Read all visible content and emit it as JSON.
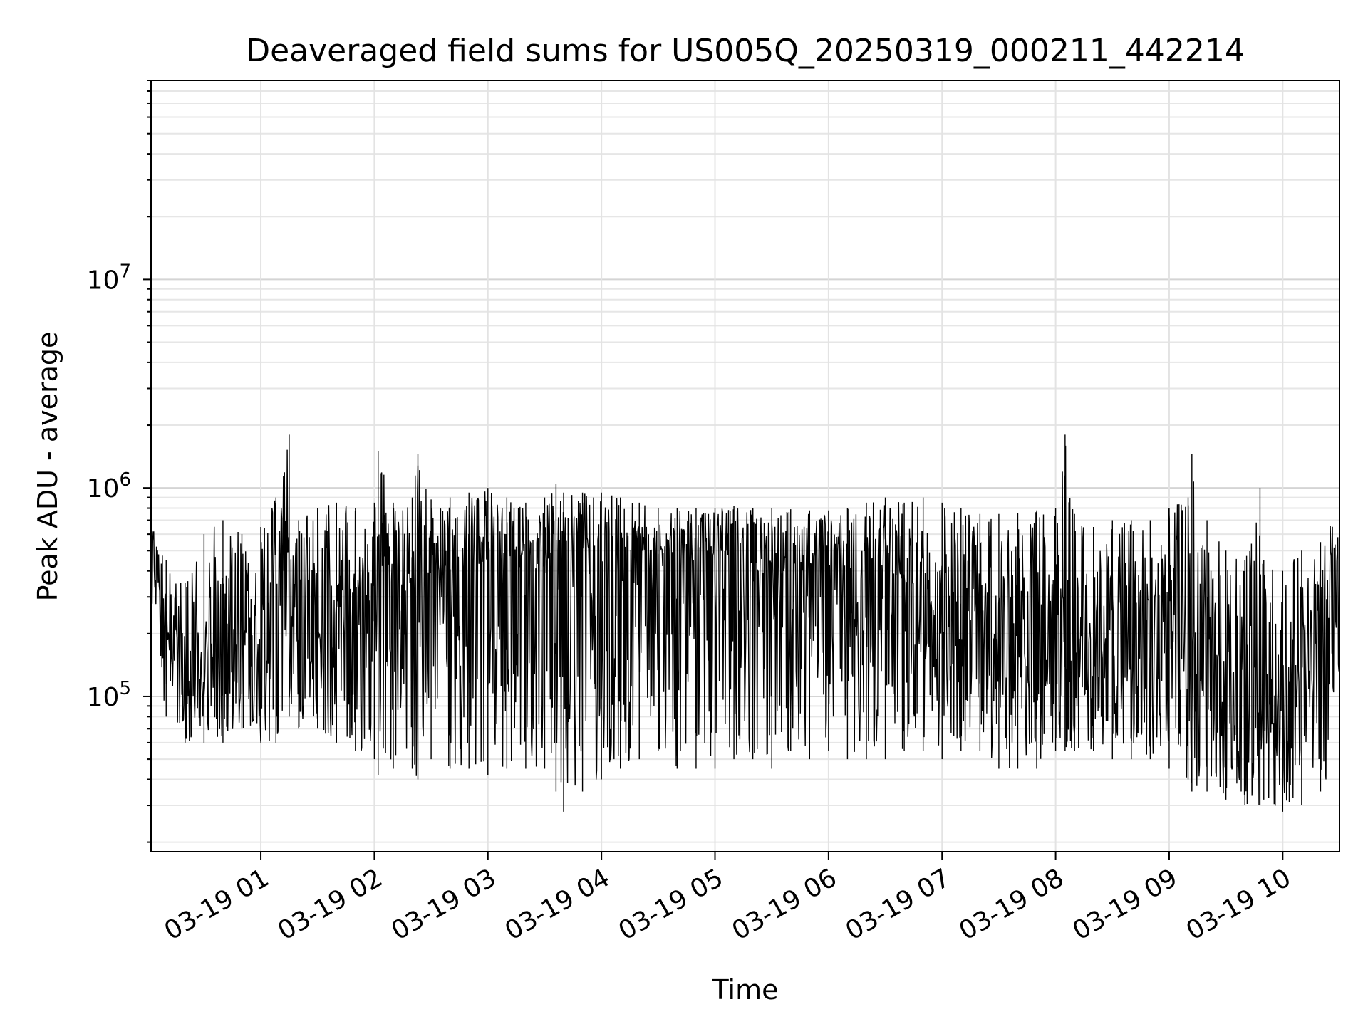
{
  "chart_data": {
    "type": "line",
    "title": "Deaveraged field sums for US005Q_20250319_000211_442214",
    "xlabel": "Time",
    "ylabel": "Peak ADU - average",
    "x_scale": "time",
    "y_scale": "log",
    "xlim": [
      "2025-03-19 00:02",
      "2025-03-19 10:30"
    ],
    "ylim": [
      18000,
      90000000
    ],
    "grid": true,
    "legend": "none",
    "x_tick_labels": [
      "03-19 01",
      "03-19 02",
      "03-19 03",
      "03-19 04",
      "03-19 05",
      "03-19 06",
      "03-19 07",
      "03-19 08",
      "03-19 09",
      "03-19 10"
    ],
    "y_tick_labels": [
      {
        "value": 100000,
        "mantissa": "10",
        "exponent": "5"
      },
      {
        "value": 1000000,
        "mantissa": "10",
        "exponent": "6"
      },
      {
        "value": 10000000,
        "mantissa": "10",
        "exponent": "7"
      }
    ],
    "line_color": "#000000",
    "series": [
      {
        "x": [
          "00:02",
          "00:10",
          "00:20",
          "00:30",
          "00:40",
          "00:50",
          "01:00",
          "01:08",
          "01:15",
          "01:20",
          "01:30",
          "01:40",
          "01:50",
          "02:00",
          "02:02",
          "02:10",
          "02:20",
          "02:23",
          "02:30",
          "02:40",
          "02:50",
          "03:00",
          "03:10",
          "03:20",
          "03:30",
          "03:36",
          "03:40",
          "03:50",
          "04:00",
          "04:10",
          "04:20",
          "04:30",
          "04:40",
          "04:50",
          "05:00",
          "05:10",
          "05:20",
          "05:30",
          "05:40",
          "05:50",
          "06:00",
          "06:10",
          "06:20",
          "06:30",
          "06:40",
          "06:50",
          "07:00",
          "07:10",
          "07:20",
          "07:30",
          "07:40",
          "07:50",
          "08:00",
          "08:05",
          "08:10",
          "08:20",
          "08:30",
          "08:40",
          "08:50",
          "09:00",
          "09:10",
          "09:12",
          "09:20",
          "09:30",
          "09:40",
          "09:48",
          "09:50",
          "10:00",
          "10:10",
          "10:20",
          "10:30"
        ],
        "y_high": [
          800000,
          450000,
          350000,
          600000,
          700000,
          600000,
          650000,
          900000,
          1800000,
          700000,
          800000,
          850000,
          800000,
          850000,
          1500000,
          850000,
          900000,
          1450000,
          880000,
          900000,
          950000,
          1000000,
          900000,
          850000,
          900000,
          1050000,
          950000,
          950000,
          950000,
          900000,
          850000,
          800000,
          800000,
          800000,
          800000,
          820000,
          800000,
          800000,
          790000,
          780000,
          780000,
          800000,
          850000,
          900000,
          850000,
          900000,
          850000,
          800000,
          750000,
          750000,
          760000,
          780000,
          800000,
          1800000,
          750000,
          650000,
          700000,
          700000,
          700000,
          800000,
          900000,
          1450000,
          700000,
          500000,
          450000,
          1000000,
          450000,
          400000,
          500000,
          550000,
          800000
        ],
        "y_low": [
          250000,
          80000,
          60000,
          60000,
          60000,
          70000,
          60000,
          60000,
          80000,
          70000,
          70000,
          60000,
          55000,
          50000,
          42000,
          45000,
          45000,
          40000,
          50000,
          45000,
          45000,
          42000,
          45000,
          45000,
          45000,
          35000,
          28000,
          35000,
          40000,
          45000,
          50000,
          55000,
          45000,
          45000,
          45000,
          50000,
          50000,
          45000,
          55000,
          50000,
          55000,
          50000,
          50000,
          50000,
          55000,
          55000,
          50000,
          55000,
          55000,
          45000,
          45000,
          45000,
          55000,
          55000,
          55000,
          55000,
          50000,
          50000,
          50000,
          45000,
          40000,
          35000,
          35000,
          32000,
          30000,
          30000,
          32000,
          28000,
          30000,
          35000,
          50000
        ],
        "y_typical": [
          550000,
          180000,
          150000,
          140000,
          140000,
          160000,
          150000,
          180000,
          250000,
          220000,
          230000,
          260000,
          280000,
          300000,
          320000,
          330000,
          350000,
          360000,
          380000,
          400000,
          420000,
          440000,
          460000,
          470000,
          480000,
          490000,
          500000,
          510000,
          520000,
          510000,
          500000,
          490000,
          470000,
          460000,
          450000,
          440000,
          430000,
          430000,
          420000,
          410000,
          400000,
          390000,
          380000,
          370000,
          350000,
          330000,
          320000,
          300000,
          280000,
          270000,
          260000,
          250000,
          240000,
          240000,
          230000,
          220000,
          210000,
          190000,
          180000,
          160000,
          140000,
          130000,
          110000,
          100000,
          95000,
          95000,
          95000,
          100000,
          120000,
          200000,
          500000
        ]
      }
    ]
  }
}
